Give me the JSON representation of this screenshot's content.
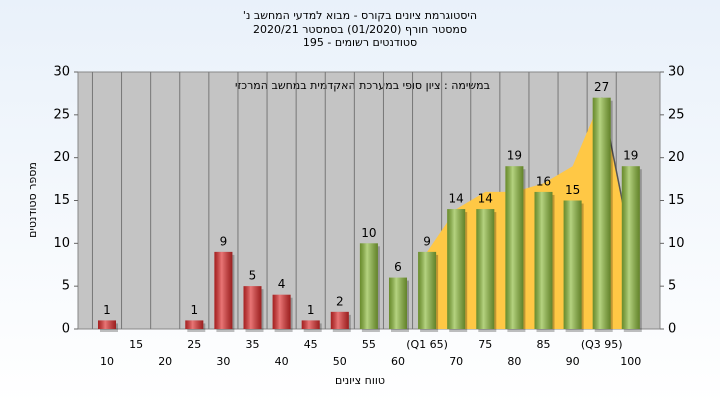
{
  "chart_data": {
    "type": "bar",
    "title": [
      "היסטוגרמת ציונים בקורס - מבוא למדעי המחשב נ'",
      "סמסטר חורף (01/2020) בסמסטר 2020/21",
      "סטודנטים רשומים - 195"
    ],
    "annotation": "במשימה : ציון סופי במערכת האקדמית במחשב המרכזי",
    "x_label": "טווח ציונים",
    "y_label": "מספר סטודנטים",
    "categories": [
      "10",
      "15",
      "20",
      "25",
      "30",
      "35",
      "40",
      "45",
      "50",
      "55",
      "60",
      "(Q1 65)",
      "70",
      "75",
      "80",
      "85",
      "90",
      "(Q3 95)",
      "100"
    ],
    "values": [
      1,
      0,
      0,
      1,
      9,
      5,
      4,
      1,
      2,
      10,
      6,
      9,
      14,
      14,
      19,
      16,
      15,
      27,
      19
    ],
    "colors": [
      "#dd2c2c",
      "#dd2c2c",
      "#dd2c2c",
      "#dd2c2c",
      "#dd2c2c",
      "#dd2c2c",
      "#dd2c2c",
      "#dd2c2c",
      "#dd2c2c",
      "#8dbb3c",
      "#8dbb3c",
      "#8dbb3c",
      "#8dbb3c",
      "#8dbb3c",
      "#8dbb3c",
      "#8dbb3c",
      "#8dbb3c",
      "#8dbb3c",
      "#8dbb3c"
    ],
    "area": {
      "color": "#ffc845",
      "edge_color": "#555555",
      "values": [
        null,
        null,
        null,
        null,
        null,
        null,
        null,
        null,
        null,
        null,
        null,
        9,
        14,
        16,
        16,
        17,
        19,
        27,
        10
      ]
    },
    "ylim": [
      0,
      30
    ],
    "yticks": [
      0,
      5,
      10,
      15,
      20,
      25,
      30
    ],
    "y2lim": [
      0,
      30
    ],
    "y2ticks": [
      0,
      5,
      10,
      15,
      20,
      25,
      30
    ],
    "grid": true
  }
}
